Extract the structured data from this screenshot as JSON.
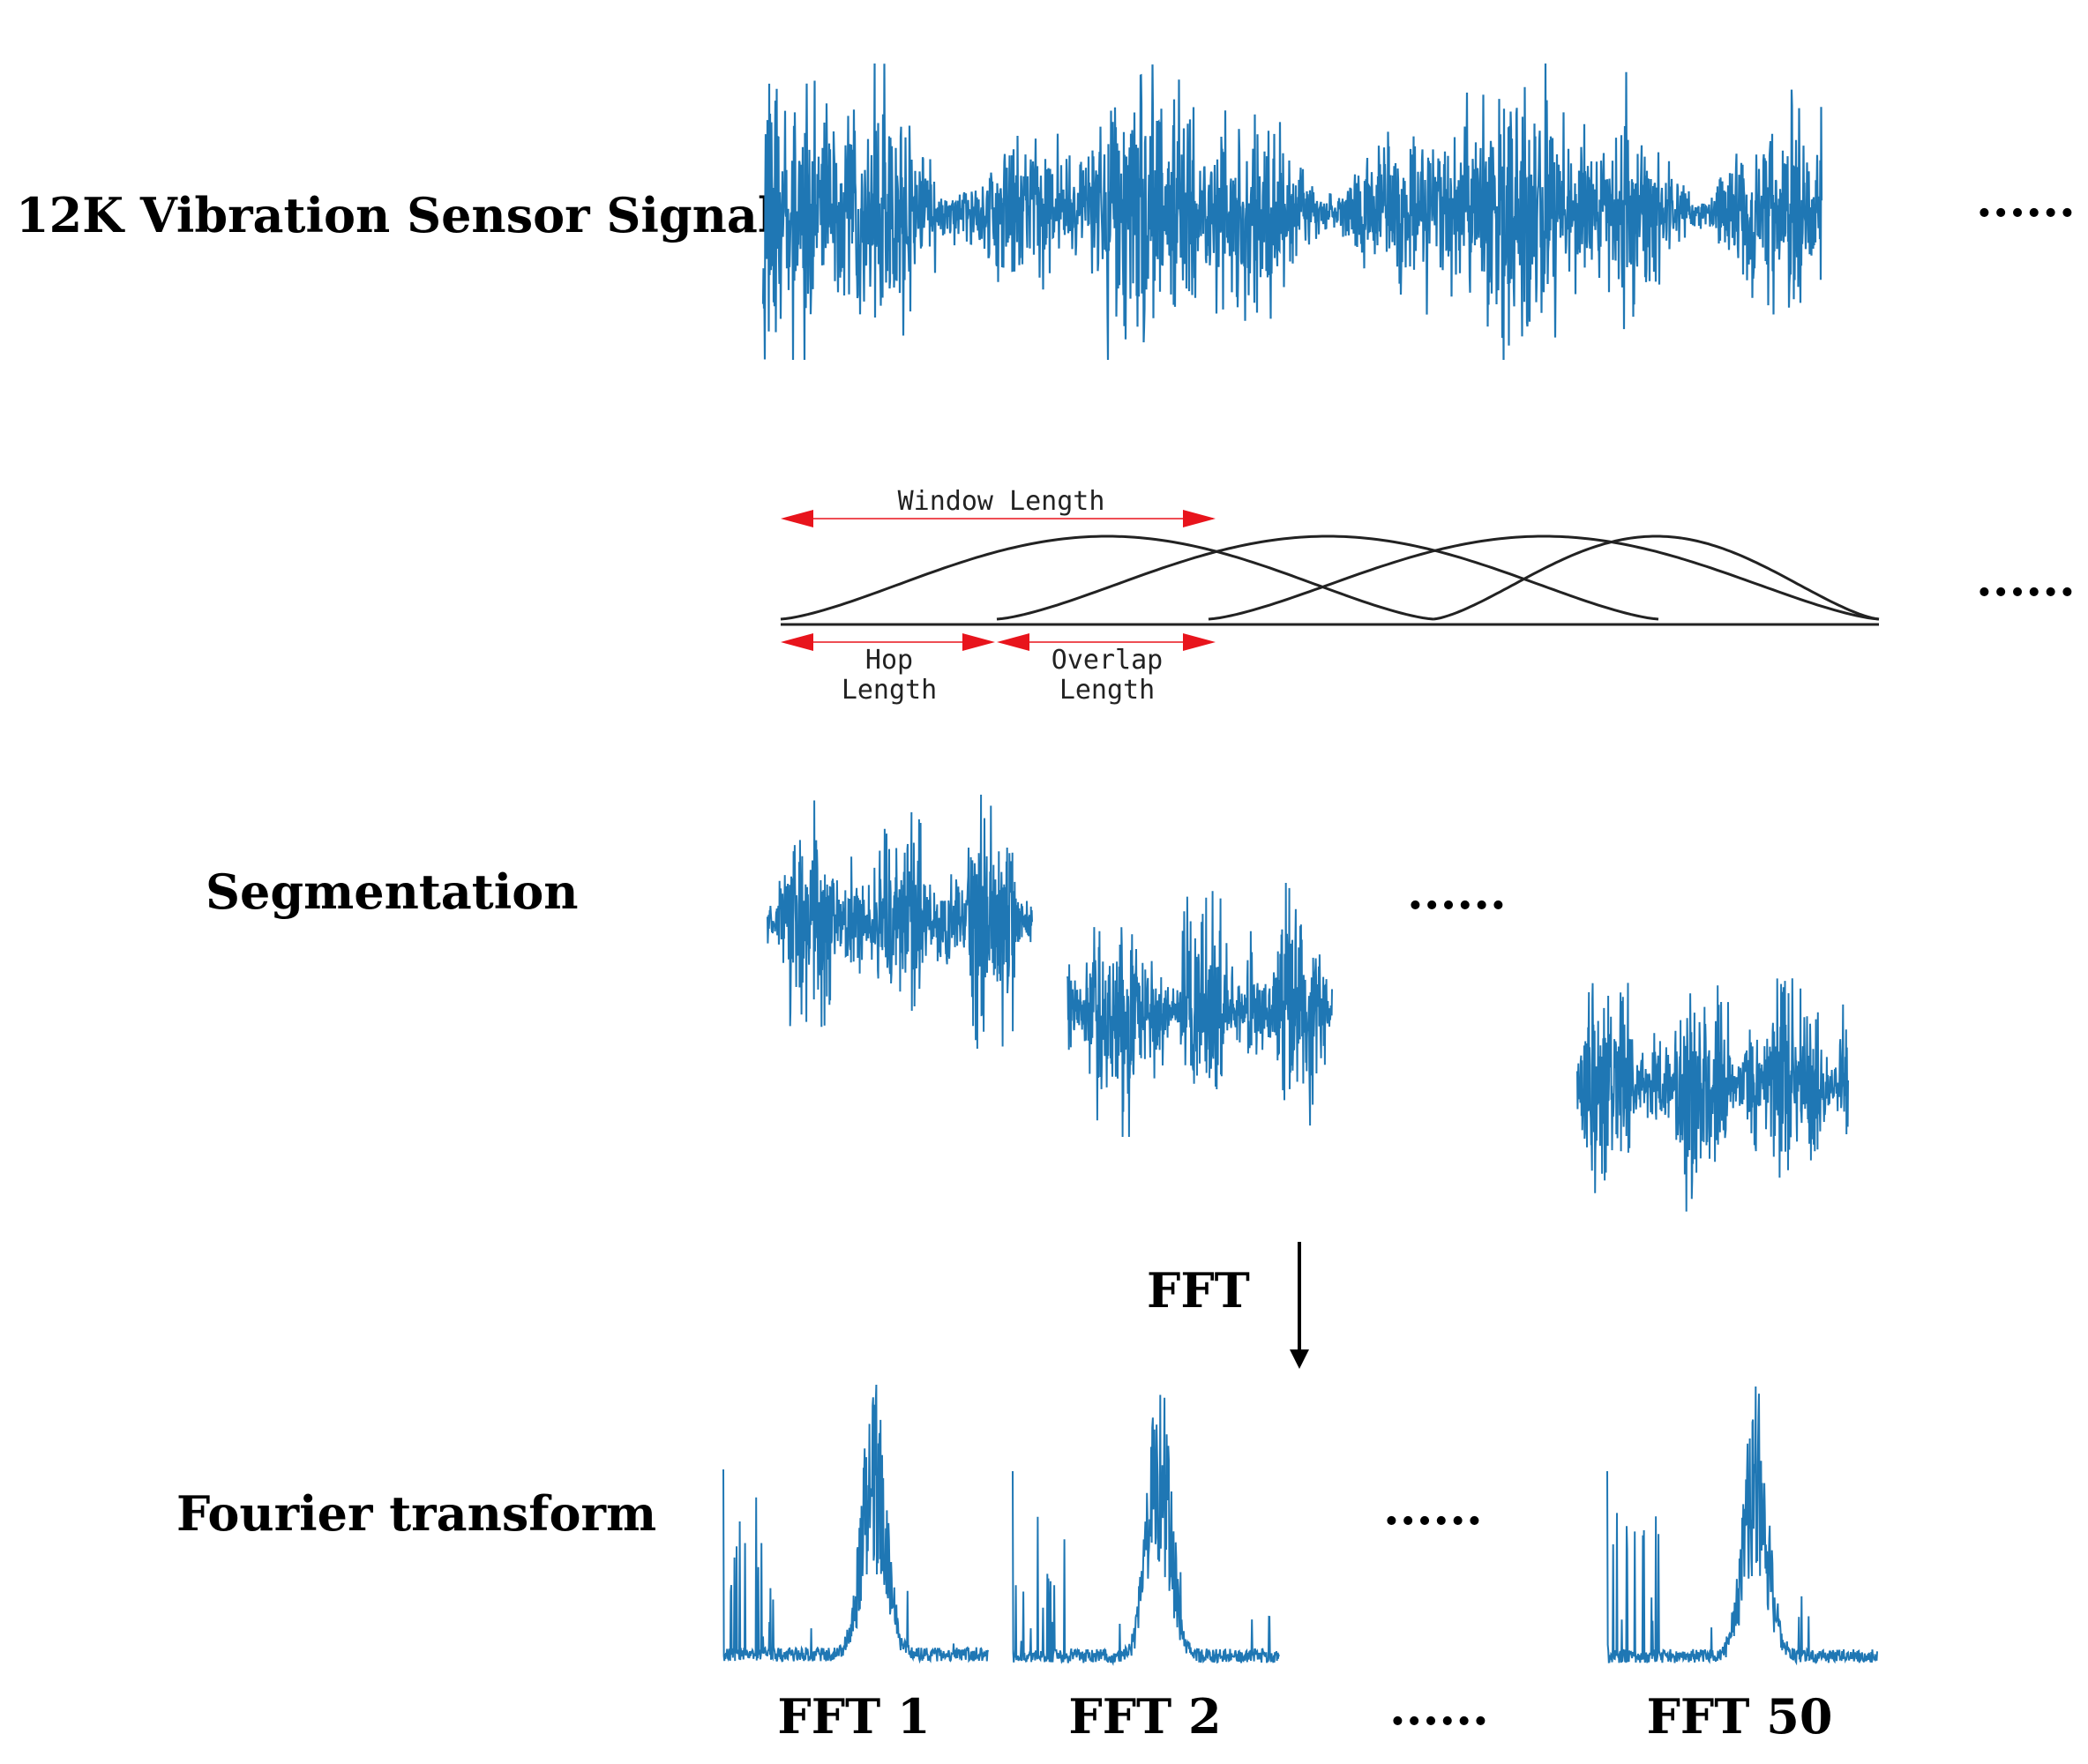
{
  "labels": {
    "signal": "12K Vibration Sensor Signal",
    "segmentation": "Segmentation",
    "fourier": "Fourier transform",
    "fft_arrow": "FFT"
  },
  "window_labels": {
    "window_length": "Window Length",
    "hop": "Hop",
    "hop_length": "Length",
    "overlap": "Overlap",
    "overlap_length": "Length"
  },
  "ellipsis": {
    "signal": "......",
    "window": "......",
    "segments": "......",
    "fft_plots": "......",
    "fft_labels": "......"
  },
  "fft_labels": [
    "FFT 1",
    "FFT 2",
    "FFT 50"
  ],
  "colors": {
    "signal": "#1f77b4",
    "arrow_red": "#e8141c",
    "curve": "#222222",
    "text": "#000000"
  }
}
